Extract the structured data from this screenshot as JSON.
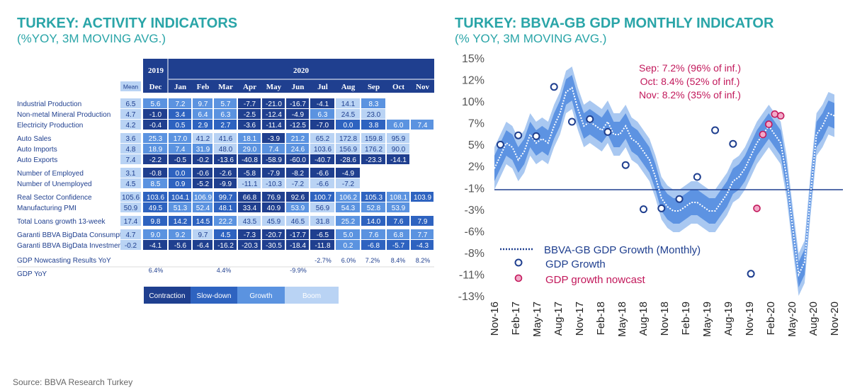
{
  "left": {
    "title": "TURKEY: ACTIVITY INDICATORS",
    "subtitle": "(%YOY, 3M MOVING AVG.)",
    "year_2019": "2019",
    "year_2020": "2020",
    "mean_label": "Mean",
    "months": [
      "Dec",
      "Jan",
      "Feb",
      "Mar",
      "Apr",
      "May",
      "Jun",
      "Jul",
      "Aug",
      "Sep",
      "Oct",
      "Nov"
    ],
    "colors": {
      "contraction": "#1f3f8f",
      "slowdown": "#2e63c0",
      "growth": "#5b93e0",
      "boom": "#b9d3f4"
    },
    "rows": [
      {
        "label": "Industrial Production",
        "mean": "6.5",
        "cells": [
          [
            "5.6",
            "g"
          ],
          [
            "7.2",
            "g"
          ],
          [
            "9.7",
            "g"
          ],
          [
            "5.7",
            "g"
          ],
          [
            "-7.7",
            "c"
          ],
          [
            "-21.0",
            "c"
          ],
          [
            "-16.7",
            "c"
          ],
          [
            "-4.1",
            "c"
          ],
          [
            "14.1",
            "b"
          ],
          [
            "8.3",
            "g"
          ]
        ]
      },
      {
        "label": "Non-metal Mineral Production",
        "mean": "4.7",
        "cells": [
          [
            "-1.0",
            "c"
          ],
          [
            "3.4",
            "s"
          ],
          [
            "6.4",
            "g"
          ],
          [
            "6.3",
            "g"
          ],
          [
            "-2.5",
            "c"
          ],
          [
            "-12.4",
            "c"
          ],
          [
            "-4.9",
            "c"
          ],
          [
            "6.3",
            "g"
          ],
          [
            "24.5",
            "b"
          ],
          [
            "23.0",
            "b"
          ]
        ]
      },
      {
        "label": "Electricity Production",
        "mean": "4.2",
        "cells": [
          [
            "-0.4",
            "c"
          ],
          [
            "0.5",
            "s"
          ],
          [
            "2.9",
            "s"
          ],
          [
            "2.7",
            "s"
          ],
          [
            "-3.6",
            "c"
          ],
          [
            "-11.4",
            "c"
          ],
          [
            "-12.5",
            "c"
          ],
          [
            "-7.0",
            "c"
          ],
          [
            "0.0",
            "s"
          ],
          [
            "3.8",
            "s"
          ],
          [
            "6.0",
            "g"
          ],
          [
            "7.4",
            "g"
          ]
        ]
      },
      {
        "label": "Auto Sales",
        "mean": "3.6",
        "cells": [
          [
            "25.3",
            "g"
          ],
          [
            "17.0",
            "g"
          ],
          [
            "41.2",
            "b"
          ],
          [
            "41.6",
            "b"
          ],
          [
            "18.1",
            "g"
          ],
          [
            "-3.9",
            "c"
          ],
          [
            "21.2",
            "g"
          ],
          [
            "65.2",
            "b"
          ],
          [
            "172.8",
            "b"
          ],
          [
            "159.8",
            "b"
          ],
          [
            "95.9",
            "b"
          ]
        ]
      },
      {
        "label": "Auto Imports",
        "mean": "4.8",
        "cells": [
          [
            "18.9",
            "g"
          ],
          [
            "7.4",
            "g"
          ],
          [
            "31.9",
            "g"
          ],
          [
            "48.0",
            "b"
          ],
          [
            "29.0",
            "g"
          ],
          [
            "7.4",
            "g"
          ],
          [
            "24.6",
            "g"
          ],
          [
            "103.6",
            "b"
          ],
          [
            "156.9",
            "b"
          ],
          [
            "176.2",
            "b"
          ],
          [
            "90.0",
            "b"
          ]
        ]
      },
      {
        "label": "Auto Exports",
        "mean": "7.4",
        "cells": [
          [
            "-2.2",
            "c"
          ],
          [
            "-0.5",
            "c"
          ],
          [
            "-0.2",
            "c"
          ],
          [
            "-13.6",
            "c"
          ],
          [
            "-40.8",
            "c"
          ],
          [
            "-58.9",
            "c"
          ],
          [
            "-60.0",
            "c"
          ],
          [
            "-40.7",
            "c"
          ],
          [
            "-28.6",
            "c"
          ],
          [
            "-23.3",
            "c"
          ],
          [
            "-14.1",
            "c"
          ]
        ]
      },
      {
        "label": "Number of Employed",
        "mean": "3.1",
        "cells": [
          [
            "-0.8",
            "c"
          ],
          [
            "0.0",
            "s"
          ],
          [
            "-0.6",
            "c"
          ],
          [
            "-2.6",
            "c"
          ],
          [
            "-5.8",
            "c"
          ],
          [
            "-7.9",
            "c"
          ],
          [
            "-8.2",
            "c"
          ],
          [
            "-6.6",
            "c"
          ],
          [
            "-4.9",
            "c"
          ]
        ]
      },
      {
        "label": "Number of Unemployed",
        "mean": "4.5",
        "cells": [
          [
            "8.5",
            "g"
          ],
          [
            "0.9",
            "s"
          ],
          [
            "-5.2",
            "c"
          ],
          [
            "-9.9",
            "c"
          ],
          [
            "-11.1",
            "b"
          ],
          [
            "-10.3",
            "b"
          ],
          [
            "-7.2",
            "b"
          ],
          [
            "-6.6",
            "b"
          ],
          [
            "-7.2",
            "b"
          ]
        ]
      },
      {
        "label": "Real Sector Confidence",
        "mean": "105.6",
        "cells": [
          [
            "103.6",
            "s"
          ],
          [
            "104.1",
            "s"
          ],
          [
            "106.9",
            "g"
          ],
          [
            "99.7",
            "s"
          ],
          [
            "66.8",
            "c"
          ],
          [
            "76.9",
            "c"
          ],
          [
            "92.6",
            "c"
          ],
          [
            "100.7",
            "s"
          ],
          [
            "106.2",
            "g"
          ],
          [
            "105.3",
            "s"
          ],
          [
            "108.1",
            "g"
          ],
          [
            "103.9",
            "s"
          ]
        ]
      },
      {
        "label": "Manufacturing PMI",
        "mean": "50.9",
        "cells": [
          [
            "49.5",
            "s"
          ],
          [
            "51.3",
            "g"
          ],
          [
            "52.4",
            "g"
          ],
          [
            "48.1",
            "s"
          ],
          [
            "33.4",
            "c"
          ],
          [
            "40.9",
            "c"
          ],
          [
            "53.9",
            "g"
          ],
          [
            "56.9",
            "b"
          ],
          [
            "54.3",
            "g"
          ],
          [
            "52.8",
            "g"
          ],
          [
            "53.9",
            "g"
          ]
        ]
      },
      {
        "label": "Total Loans growth 13-week",
        "mean": "17.4",
        "cells": [
          [
            "9.8",
            "s"
          ],
          [
            "14.2",
            "s"
          ],
          [
            "14.5",
            "s"
          ],
          [
            "22.2",
            "g"
          ],
          [
            "43.5",
            "b"
          ],
          [
            "45.9",
            "b"
          ],
          [
            "46.5",
            "b"
          ],
          [
            "31.8",
            "b"
          ],
          [
            "25.2",
            "g"
          ],
          [
            "14.0",
            "s"
          ],
          [
            "7.6",
            "s"
          ],
          [
            "7.9",
            "s"
          ]
        ]
      },
      {
        "label": "Garanti BBVA BigData Consumption",
        "mean": "4.7",
        "cells": [
          [
            "9.0",
            "g"
          ],
          [
            "9.2",
            "g"
          ],
          [
            "9.7",
            "b"
          ],
          [
            "4.5",
            "s"
          ],
          [
            "-7.3",
            "c"
          ],
          [
            "-20.7",
            "c"
          ],
          [
            "-17.7",
            "c"
          ],
          [
            "-6.5",
            "c"
          ],
          [
            "5.0",
            "g"
          ],
          [
            "7.6",
            "g"
          ],
          [
            "6.8",
            "g"
          ],
          [
            "7.7",
            "g"
          ]
        ]
      },
      {
        "label": "Garanti BBVA BigData Investment",
        "mean": "-0.2",
        "cells": [
          [
            "-4.1",
            "c"
          ],
          [
            "-5.6",
            "c"
          ],
          [
            "-6.4",
            "c"
          ],
          [
            "-16.2",
            "c"
          ],
          [
            "-20.3",
            "c"
          ],
          [
            "-30.5",
            "c"
          ],
          [
            "-18.4",
            "c"
          ],
          [
            "-11.8",
            "c"
          ],
          [
            "0.2",
            "g"
          ],
          [
            "-6.8",
            "s"
          ],
          [
            "-5.7",
            "s"
          ],
          [
            "-4.3",
            "s"
          ]
        ]
      }
    ],
    "nowcast_label": "GDP Nowcasting Results YoY",
    "nowcast_values": [
      "-2.7%",
      "6.0%",
      "7.2%",
      "8.4%",
      "8.2%"
    ],
    "gdp_label": "GDP YoY",
    "gdp_values": [
      "6.4%",
      "4.4%",
      "-9.9%"
    ],
    "legend": [
      "Contraction",
      "Slow-down",
      "Growth",
      "Boom"
    ]
  },
  "right": {
    "title": "TURKEY: BBVA-GB GDP MONTHLY INDICATOR",
    "subtitle": "(% YOY, 3M MOVING AVG.)",
    "annotations": [
      "Sep: 7.2% (96% of inf.)",
      "Oct: 8.4% (52% of inf.)",
      "Nov: 8.2% (35% of inf.)"
    ],
    "legend": [
      "BBVA-GB GDP Growth (Monthly)",
      "GDP Growth",
      "GDP growth nowcast"
    ]
  },
  "chart_data": {
    "type": "line",
    "title": "TURKEY: BBVA-GB GDP MONTHLY INDICATOR",
    "ylabel": "% YOY, 3M MOVING AVG.",
    "ylim": [
      -13,
      15
    ],
    "y_ticks": [
      "15%",
      "12%",
      "10%",
      "7%",
      "5%",
      "2%",
      "-1%",
      "-3%",
      "-6%",
      "-8%",
      "-11%",
      "-13%"
    ],
    "x_ticks": [
      "Nov-16",
      "Feb-17",
      "May-17",
      "Aug-17",
      "Nov-17",
      "Feb-18",
      "May-18",
      "Aug-18",
      "Nov-18",
      "Feb-19",
      "May-19",
      "Aug-19",
      "Nov-19",
      "Feb-20",
      "May-20",
      "Aug-20",
      "Nov-20"
    ],
    "reference_line": -0.5,
    "monthly_series": {
      "name": "BBVA-GB GDP Growth (Monthly)",
      "values": [
        2.0,
        3.5,
        5.0,
        4.5,
        3.0,
        4.0,
        6.0,
        5.0,
        5.5,
        5.0,
        7.0,
        8.5,
        11.0,
        11.5,
        9.0,
        7.0,
        7.5,
        7.0,
        6.5,
        7.5,
        6.0,
        6.0,
        7.0,
        5.5,
        5.0,
        4.0,
        3.0,
        1.0,
        -1.5,
        -2.5,
        -3.0,
        -3.0,
        -2.5,
        -2.0,
        -2.0,
        -2.5,
        -3.0,
        -3.0,
        -2.0,
        -1.0,
        0.5,
        1.0,
        2.0,
        3.5,
        5.0,
        6.0,
        7.0,
        6.0,
        5.0,
        1.0,
        -5.0,
        -10.5,
        -9.0,
        -1.0,
        6.0,
        7.0,
        8.5,
        8.2
      ],
      "band_inner": 1.5,
      "band_outer": 2.5
    },
    "gdp_growth": {
      "name": "GDP Growth",
      "points": [
        [
          1,
          4.8
        ],
        [
          4,
          5.9
        ],
        [
          7,
          5.8
        ],
        [
          10,
          11.6
        ],
        [
          13,
          7.5
        ],
        [
          16,
          7.8
        ],
        [
          19,
          6.3
        ],
        [
          22,
          2.4
        ],
        [
          25,
          -2.8
        ],
        [
          28,
          -2.7
        ],
        [
          31,
          -1.6
        ],
        [
          34,
          1.0
        ],
        [
          37,
          6.5
        ],
        [
          40,
          4.9
        ],
        [
          43,
          -10.4
        ]
      ]
    },
    "gdp_nowcast": {
      "name": "GDP growth nowcast",
      "points": [
        [
          44,
          -2.7
        ],
        [
          45,
          6.0
        ],
        [
          46,
          7.2
        ],
        [
          47,
          8.4
        ],
        [
          48,
          8.2
        ]
      ]
    }
  },
  "source": "Source: BBVA Research Turkey"
}
